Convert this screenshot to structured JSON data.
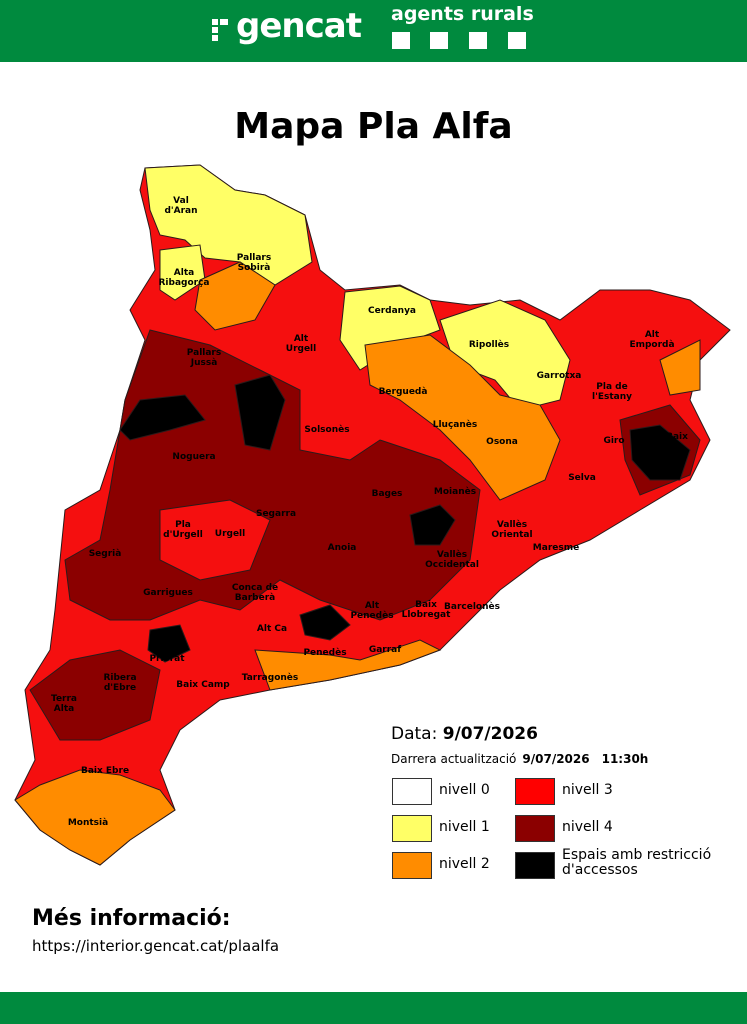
{
  "header": {
    "brand": "gencat",
    "section": "agents rurals"
  },
  "title": "Mapa Pla Alfa",
  "regions": [
    "Val\nd'Aran",
    "Pallars\nSobirà",
    "Alta\nRibagorça",
    "Cerdanya",
    "Alt\nUrgell",
    "Pallars\nJussà",
    "Ripollès",
    "Alt\nEmpordà",
    "Garrotxa",
    "Berguedà",
    "Pla de\nl'Estany",
    "Solsonès",
    "Lluçanès",
    "Osona",
    "Giro",
    "Baix",
    "Noguera",
    "Selva",
    "Bages",
    "Moianès",
    "Segarra",
    "Pla\nd'Urgell",
    "Urgell",
    "Vallès\nOriental",
    "Segrià",
    "Anoia",
    "Vallès\nOccidental",
    "Maresme",
    "Garrigues",
    "Conca de\nBarberà",
    "Alt\nPenedès",
    "Baix\nLlobregat",
    "Barcelonès",
    "Alt Ca",
    "Priorat",
    "Penedès",
    "Garraf",
    "Ribera\nd'Ebre",
    "Baix Camp",
    "Tarragonès",
    "Terra\nAlta",
    "Baix Ebre",
    "Montsià"
  ],
  "date": {
    "label": "Data:",
    "value": "9/07/2026"
  },
  "update": {
    "label": "Darrera actualització",
    "date": "9/07/2026",
    "time": "11:30h"
  },
  "legend": [
    {
      "label": "nivell 0",
      "color": "#ffffff"
    },
    {
      "label": "nivell 1",
      "color": "#ffff66"
    },
    {
      "label": "nivell 2",
      "color": "#ff8c00"
    },
    {
      "label": "nivell 3",
      "color": "#ff0000"
    },
    {
      "label": "nivell 4",
      "color": "#8b0000"
    },
    {
      "label": "Espais amb restricció\nd'accessos",
      "color": "#000000"
    }
  ],
  "more_info": {
    "title": "Més informació:",
    "url": "https://interior.gencat.cat/plaalfa"
  }
}
